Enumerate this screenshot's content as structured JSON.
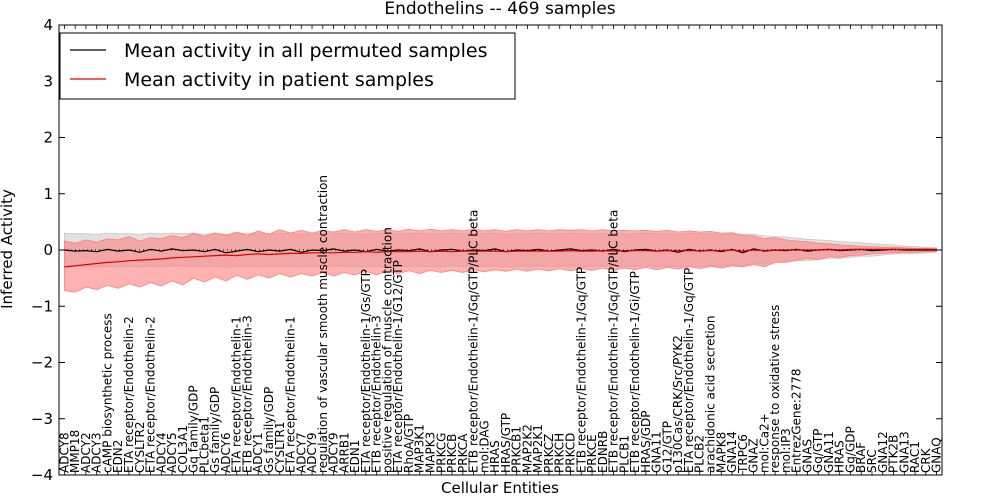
{
  "chart_data": {
    "type": "line",
    "title": "Endothelins -- 469 samples",
    "xlabel": "Cellular Entities",
    "ylabel": "Inferred Activity",
    "ylim": [
      -4,
      4
    ],
    "yticks": [
      -4,
      -3,
      -2,
      -1,
      0,
      1,
      2,
      3,
      4
    ],
    "grid": false,
    "legend_position": "top-left",
    "reference_line": 0,
    "categories": [
      "ADCY8",
      "MMP18",
      "ADCY2",
      "ADCY3",
      "cAMP biosynthetic process",
      "EDN2",
      "ETA receptor/Endothelin-2",
      "CYSLTR2",
      "ETA receptor/Endothelin-2",
      "ADCY4",
      "ADCY5",
      "COL3A1",
      "Gq family/GDP",
      "PLCbeta1",
      "Gs family/GDP",
      "ADCY6",
      "ETA receptor/Endothelin-1",
      "ETB receptor/Endothelin-3",
      "ADCY1",
      "Gs family/GDP",
      "CYSLTR1",
      "ETA receptor/Endothelin-1",
      "ADCY7",
      "ADCY9",
      "regulation of vascular smooth muscle contraction",
      "ADCY9",
      "ARRB1",
      "EDN1",
      "ETA receptor/Endothelin-1/Gs/GTP",
      "ETB receptor/Endothelin-3",
      "positive regulation of muscle contraction",
      "ETA receptor/Endothelin-1/G12/GTP",
      "RhoA/GTP",
      "MAP3K1",
      "MAPK3",
      "PRKCG",
      "PRKCB",
      "PRKCA",
      "ETB receptor/Endothelin-1/Gq/GTP/PLC beta",
      "mol:DAG",
      "HRAS",
      "HRAS/GTP",
      "PRKCB1",
      "MAP2K2",
      "MAP2K1",
      "PRKCZ",
      "PRKCH",
      "PRKCD",
      "ETB receptor/Endothelin-1/Gq/GTP",
      "PRKCE",
      "EDNRB",
      "ETB receptor/Endothelin-1/Gq/GTP/PLC beta",
      "PLCB1",
      "ETB receptor/Endothelin-1/Gi/GTP",
      "HRAS/GDP",
      "GNA11",
      "G12/GTP",
      "p130Cas/CRK/Src/PYK2",
      "ETA receptor/Endothelin-1/Gq/GTP",
      "PLCB2",
      "arachidonic acid secretion",
      "MAPK8",
      "GNA14",
      "TRPC6",
      "GNAZ",
      "mol:Ca2+",
      "response to oxidative stress",
      "mol:IP3",
      "EntrezGene:2778",
      "GNAS",
      "Gq/GTP",
      "GNA11",
      "HRAS",
      "Gq/GDP",
      "BRAF",
      "SRC",
      "GNA12",
      "PTK2B",
      "GNA13",
      "RAC1",
      "CRK",
      "GNAQ"
    ],
    "category_labels_shown": [
      "ADCY8",
      "MMP18",
      "ADCY2",
      "ADCY3",
      "cAMP biosynthetic process",
      "EDN2",
      "ETA receptor/Endothelin-2",
      "CYSLTR2",
      "ETA receptor/Endothelin-2",
      "ADCY4",
      "ADCY5",
      "COL3A1",
      "Gq family/GDP",
      "PLCbeta1",
      "Gs family/GDP",
      "ADCY6",
      "ETA receptor/Endothelin-1",
      "ETB receptor/Endothelin-3",
      "ADCY1",
      "Gs family/GDP",
      "CYSLTR1",
      "ETA receptor/Endothelin-1",
      "ADCY7",
      "ADCY9",
      "regulation of vascular smooth muscle contraction",
      "ADCY9",
      "ARRB1",
      "EDN1",
      "ETA receptor/Endothelin-1/Gs/GTP",
      "ETB receptor/Endothelin-3",
      "positive regulation of muscle contraction",
      "ETA receptor/Endothelin-1/G12/GTP",
      "RhoA/GTP",
      "MAP3K1",
      "MAPK3",
      "PRKCG",
      "PRKCB",
      "PRKCA",
      "ETB receptor/Endothelin-1/Gq/GTP/PLC beta",
      "mol:DAG",
      "HRAS",
      "HRAS/GTP",
      "PRKCB1",
      "MAP2K2",
      "MAP2K1",
      "PRKCZ",
      "PRKCH",
      "PRKCD",
      "ETB receptor/Endothelin-1/Gq/GTP",
      "PRKCE",
      "EDNRB",
      "ETB receptor/Endothelin-1/Gq/GTP/PLC beta",
      "PLCB1",
      "ETB receptor/Endothelin-1/Gi/GTP",
      "HRAS/GDP",
      "GNA11",
      "G12/GTP",
      "p130Cas/CRK/Src/PYK2",
      "ETA receptor/Endothelin-1/Gq/GTP",
      "PLCB2",
      "arachidonic acid secretion",
      "MAPK8",
      "GNA14",
      "TRPC6",
      "GNAZ",
      "mol:Ca2+",
      "response to oxidative stress",
      "mol:IP3",
      "EntrezGene:2778",
      "GNAS",
      "Gq/GTP",
      "GNA11",
      "HRAS",
      "Gq/GDP",
      "BRAF",
      "SRC",
      "GNA12",
      "PTK2B",
      "GNA13",
      "RAC1",
      "CRK",
      "GNAQ"
    ],
    "series": [
      {
        "name": "Mean activity in all permuted samples",
        "color": "#000000",
        "band_color": "#c8c8c8",
        "values": [
          0.0,
          -0.02,
          -0.01,
          -0.03,
          0.01,
          -0.02,
          0.0,
          -0.04,
          0.01,
          -0.02,
          0.02,
          -0.01,
          0.0,
          -0.03,
          0.01,
          -0.05,
          -0.02,
          0.01,
          -0.03,
          0.0,
          -0.02,
          0.01,
          -0.04,
          0.0,
          -0.01,
          0.02,
          -0.02,
          0.0,
          -0.03,
          0.01,
          -0.02,
          0.0,
          -0.01,
          0.02,
          -0.03,
          0.0,
          0.01,
          -0.02,
          0.0,
          -0.01,
          0.02,
          -0.03,
          0.0,
          -0.01,
          0.01,
          -0.02,
          0.0,
          0.02,
          -0.01,
          0.0,
          -0.02,
          0.01,
          -0.03,
          0.0,
          0.01,
          -0.02,
          0.0,
          -0.04,
          0.01,
          -0.02,
          0.0,
          -0.03,
          0.01,
          -0.05,
          0.02,
          -0.02,
          0.0,
          -0.01,
          0.01,
          -0.02,
          0.0,
          0.01,
          -0.01,
          0.0,
          0.01,
          -0.01,
          0.0,
          0.01,
          0.0,
          0.0,
          0.0,
          0.0
        ],
        "band_low": [
          -0.3,
          -0.29,
          -0.29,
          -0.3,
          -0.29,
          -0.3,
          -0.29,
          -0.3,
          -0.29,
          -0.3,
          -0.28,
          -0.29,
          -0.29,
          -0.3,
          -0.29,
          -0.31,
          -0.3,
          -0.29,
          -0.3,
          -0.29,
          -0.3,
          -0.29,
          -0.3,
          -0.29,
          -0.29,
          -0.28,
          -0.29,
          -0.29,
          -0.3,
          -0.29,
          -0.3,
          -0.29,
          -0.29,
          -0.28,
          -0.3,
          -0.29,
          -0.28,
          -0.29,
          -0.29,
          -0.29,
          -0.28,
          -0.3,
          -0.29,
          -0.29,
          -0.28,
          -0.29,
          -0.29,
          -0.28,
          -0.29,
          -0.29,
          -0.29,
          -0.28,
          -0.3,
          -0.29,
          -0.28,
          -0.29,
          -0.29,
          -0.3,
          -0.28,
          -0.29,
          -0.28,
          -0.29,
          -0.27,
          -0.28,
          -0.24,
          -0.25,
          -0.22,
          -0.21,
          -0.19,
          -0.19,
          -0.17,
          -0.15,
          -0.15,
          -0.13,
          -0.11,
          -0.11,
          -0.09,
          -0.07,
          -0.07,
          -0.06,
          -0.05,
          -0.04
        ],
        "band_high": [
          0.3,
          0.29,
          0.29,
          0.28,
          0.3,
          0.29,
          0.29,
          0.28,
          0.3,
          0.29,
          0.3,
          0.29,
          0.29,
          0.28,
          0.3,
          0.28,
          0.29,
          0.3,
          0.29,
          0.29,
          0.29,
          0.3,
          0.28,
          0.29,
          0.29,
          0.3,
          0.29,
          0.29,
          0.28,
          0.3,
          0.29,
          0.29,
          0.29,
          0.3,
          0.28,
          0.29,
          0.3,
          0.29,
          0.29,
          0.29,
          0.3,
          0.28,
          0.29,
          0.29,
          0.3,
          0.29,
          0.29,
          0.3,
          0.29,
          0.29,
          0.29,
          0.3,
          0.28,
          0.29,
          0.3,
          0.29,
          0.29,
          0.28,
          0.3,
          0.29,
          0.29,
          0.28,
          0.29,
          0.28,
          0.28,
          0.25,
          0.24,
          0.23,
          0.21,
          0.19,
          0.18,
          0.17,
          0.15,
          0.14,
          0.13,
          0.11,
          0.1,
          0.09,
          0.07,
          0.06,
          0.05,
          0.04
        ]
      },
      {
        "name": "Mean activity in patient samples",
        "color": "#e00000",
        "band_color": "#ff7f7f",
        "values": [
          -0.3,
          -0.28,
          -0.26,
          -0.24,
          -0.22,
          -0.21,
          -0.19,
          -0.18,
          -0.17,
          -0.16,
          -0.14,
          -0.13,
          -0.12,
          -0.11,
          -0.1,
          -0.09,
          -0.1,
          -0.08,
          -0.07,
          -0.08,
          -0.07,
          -0.06,
          -0.06,
          -0.05,
          -0.05,
          -0.05,
          -0.04,
          -0.04,
          -0.03,
          -0.04,
          -0.03,
          -0.03,
          -0.03,
          -0.02,
          -0.03,
          -0.02,
          -0.03,
          -0.02,
          -0.02,
          -0.02,
          -0.02,
          -0.03,
          -0.02,
          -0.02,
          -0.02,
          -0.02,
          -0.02,
          -0.01,
          -0.02,
          -0.02,
          -0.01,
          -0.02,
          -0.01,
          -0.01,
          -0.01,
          -0.02,
          -0.01,
          -0.01,
          -0.01,
          -0.01,
          -0.01,
          -0.01,
          0.0,
          -0.02,
          0.0,
          -0.01,
          0.0,
          0.0,
          0.0,
          0.0,
          0.0,
          0.01,
          0.0,
          0.01,
          0.01,
          0.01,
          0.01,
          0.01,
          0.01,
          0.01,
          0.01,
          0.01
        ],
        "band_low": [
          -0.72,
          -0.75,
          -0.66,
          -0.7,
          -0.63,
          -0.68,
          -0.6,
          -0.66,
          -0.58,
          -0.64,
          -0.55,
          -0.62,
          -0.5,
          -0.57,
          -0.48,
          -0.55,
          -0.45,
          -0.52,
          -0.44,
          -0.5,
          -0.42,
          -0.48,
          -0.42,
          -0.46,
          -0.4,
          -0.46,
          -0.4,
          -0.44,
          -0.38,
          -0.44,
          -0.38,
          -0.42,
          -0.37,
          -0.42,
          -0.36,
          -0.4,
          -0.36,
          -0.4,
          -0.35,
          -0.39,
          -0.35,
          -0.38,
          -0.34,
          -0.38,
          -0.34,
          -0.37,
          -0.33,
          -0.37,
          -0.33,
          -0.36,
          -0.32,
          -0.36,
          -0.32,
          -0.35,
          -0.31,
          -0.35,
          -0.31,
          -0.34,
          -0.3,
          -0.33,
          -0.29,
          -0.32,
          -0.28,
          -0.3,
          -0.26,
          -0.3,
          -0.22,
          -0.22,
          -0.18,
          -0.15,
          -0.17,
          -0.12,
          -0.13,
          -0.1,
          -0.09,
          -0.07,
          -0.06,
          -0.05,
          -0.04,
          -0.04,
          -0.03,
          -0.03
        ],
        "band_high": [
          0.16,
          0.12,
          0.18,
          0.14,
          0.2,
          0.18,
          0.24,
          0.16,
          0.22,
          0.2,
          0.26,
          0.22,
          0.3,
          0.24,
          0.3,
          0.26,
          0.32,
          0.26,
          0.34,
          0.28,
          0.36,
          0.3,
          0.35,
          0.3,
          0.35,
          0.32,
          0.36,
          0.32,
          0.36,
          0.33,
          0.36,
          0.33,
          0.37,
          0.34,
          0.37,
          0.34,
          0.36,
          0.34,
          0.37,
          0.34,
          0.36,
          0.33,
          0.36,
          0.34,
          0.36,
          0.34,
          0.36,
          0.35,
          0.36,
          0.34,
          0.36,
          0.34,
          0.35,
          0.34,
          0.35,
          0.33,
          0.35,
          0.32,
          0.34,
          0.32,
          0.33,
          0.3,
          0.31,
          0.26,
          0.25,
          0.2,
          0.22,
          0.18,
          0.16,
          0.15,
          0.12,
          0.11,
          0.09,
          0.08,
          0.07,
          0.06,
          0.05,
          0.05,
          0.04,
          0.03,
          0.03,
          0.02
        ]
      }
    ]
  }
}
